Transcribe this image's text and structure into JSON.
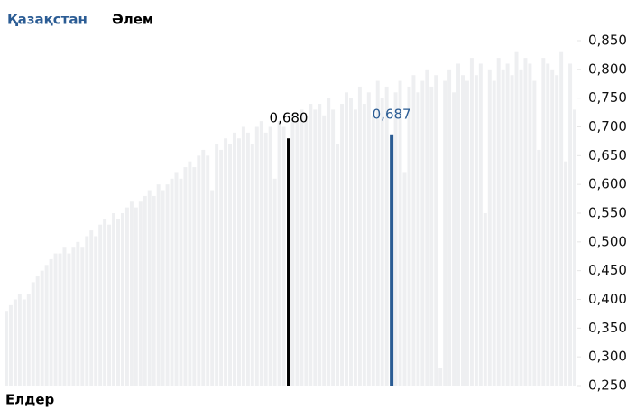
{
  "chart_data": {
    "type": "bar",
    "legend": [
      "Қазақстан",
      "Әлем"
    ],
    "xlabel": "Елдер",
    "color": "#eeeff1",
    "values": [
      0.38,
      0.39,
      0.4,
      0.41,
      0.4,
      0.41,
      0.43,
      0.44,
      0.45,
      0.46,
      0.47,
      0.48,
      0.48,
      0.49,
      0.48,
      0.49,
      0.5,
      0.49,
      0.51,
      0.52,
      0.51,
      0.53,
      0.54,
      0.53,
      0.55,
      0.54,
      0.55,
      0.56,
      0.57,
      0.56,
      0.57,
      0.58,
      0.59,
      0.58,
      0.6,
      0.59,
      0.6,
      0.61,
      0.62,
      0.61,
      0.63,
      0.64,
      0.63,
      0.65,
      0.66,
      0.65,
      0.59,
      0.67,
      0.66,
      0.68,
      0.67,
      0.69,
      0.68,
      0.7,
      0.69,
      0.67,
      0.7,
      0.71,
      0.69,
      0.7,
      0.61,
      0.71,
      0.7,
      null,
      0.72,
      0.71,
      0.73,
      0.72,
      0.74,
      0.73,
      0.74,
      0.72,
      0.75,
      0.73,
      0.67,
      0.74,
      0.76,
      0.75,
      0.73,
      0.77,
      0.74,
      0.76,
      0.72,
      0.78,
      0.75,
      0.77,
      null,
      0.76,
      0.78,
      0.62,
      0.77,
      0.79,
      0.76,
      0.78,
      0.8,
      0.77,
      0.79,
      0.28,
      0.78,
      0.8,
      0.76,
      0.81,
      0.79,
      0.78,
      0.82,
      0.79,
      0.81,
      0.55,
      0.8,
      0.78,
      0.82,
      0.8,
      0.81,
      0.79,
      0.83,
      0.8,
      0.82,
      0.81,
      0.78,
      0.66,
      0.82,
      0.81,
      0.8,
      0.79,
      0.83,
      0.64,
      0.81,
      0.73
    ],
    "series": [
      {
        "name": "Қазақстан",
        "color": "#2b5c94",
        "x": [
          86
        ],
        "values": [
          0.687
        ],
        "value_labels": [
          "0,687"
        ]
      },
      {
        "name": "Әлем",
        "color": "#000000",
        "x": [
          63
        ],
        "values": [
          0.68
        ],
        "value_labels": [
          "0,680"
        ]
      }
    ],
    "ylim": [
      0.25,
      0.85
    ],
    "yticks": [
      {
        "value": 0.25,
        "label": "0,250"
      },
      {
        "value": 0.3,
        "label": "0,300"
      },
      {
        "value": 0.35,
        "label": "0,350"
      },
      {
        "value": 0.4,
        "label": "0,400"
      },
      {
        "value": 0.45,
        "label": "0,450"
      },
      {
        "value": 0.5,
        "label": "0,500"
      },
      {
        "value": 0.55,
        "label": "0,550"
      },
      {
        "value": 0.6,
        "label": "0,600"
      },
      {
        "value": 0.65,
        "label": "0,650"
      },
      {
        "value": 0.7,
        "label": "0,700"
      },
      {
        "value": 0.75,
        "label": "0,750"
      },
      {
        "value": 0.8,
        "label": "0,800"
      },
      {
        "value": 0.85,
        "label": "0,850"
      }
    ]
  }
}
